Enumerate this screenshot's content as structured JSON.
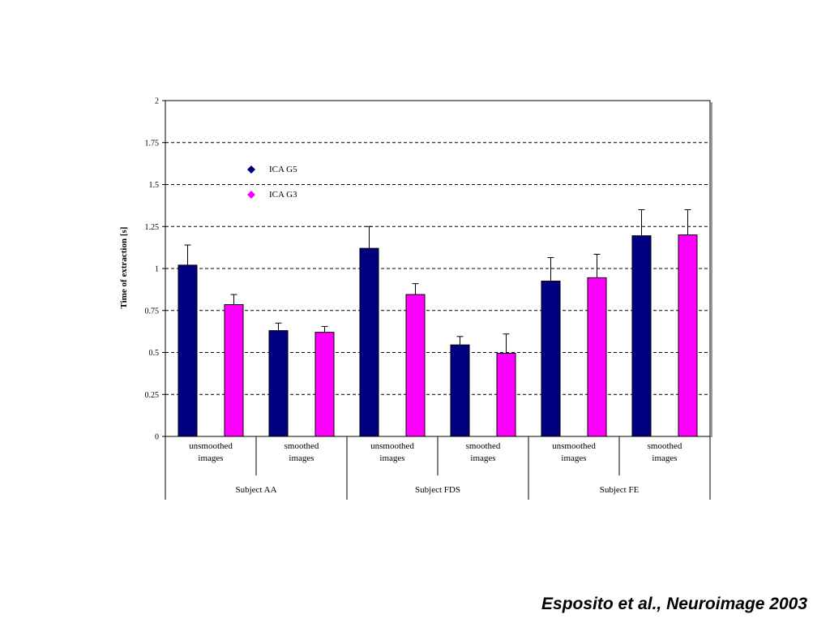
{
  "citation": "Esposito et al., Neuroimage 2003",
  "chart_data": {
    "type": "bar",
    "title": "",
    "ylabel": "Time of extraction [s]",
    "xlabel": "",
    "ylim": [
      0,
      2
    ],
    "yticks": [
      "0",
      "0.25",
      "0.5",
      "0.75",
      "1",
      "1.25",
      "1.5",
      "1.75",
      "2"
    ],
    "grid": "horizontal dashed",
    "legend_placement": "top-left",
    "groups": [
      {
        "label": "Subject AA",
        "categories": [
          {
            "line1": "unsmoothed",
            "line2": "images"
          },
          {
            "line1": "smoothed",
            "line2": "images"
          }
        ]
      },
      {
        "label": "Subject FDS",
        "categories": [
          {
            "line1": "unsmoothed",
            "line2": "images"
          },
          {
            "line1": "smoothed",
            "line2": "images"
          }
        ]
      },
      {
        "label": "Subject FE",
        "categories": [
          {
            "line1": "unsmoothed",
            "line2": "images"
          },
          {
            "line1": "smoothed",
            "line2": "images"
          }
        ]
      }
    ],
    "series": [
      {
        "name": "ICA G5",
        "color": "#000080",
        "values": [
          1.02,
          0.63,
          1.12,
          0.545,
          0.925,
          1.195
        ],
        "errors": [
          0.12,
          0.045,
          0.13,
          0.05,
          0.14,
          0.155
        ]
      },
      {
        "name": "ICA G3",
        "color": "#ff00ff",
        "values": [
          0.785,
          0.62,
          0.845,
          0.495,
          0.945,
          1.2
        ],
        "errors": [
          0.06,
          0.035,
          0.065,
          0.115,
          0.14,
          0.15
        ]
      }
    ]
  }
}
